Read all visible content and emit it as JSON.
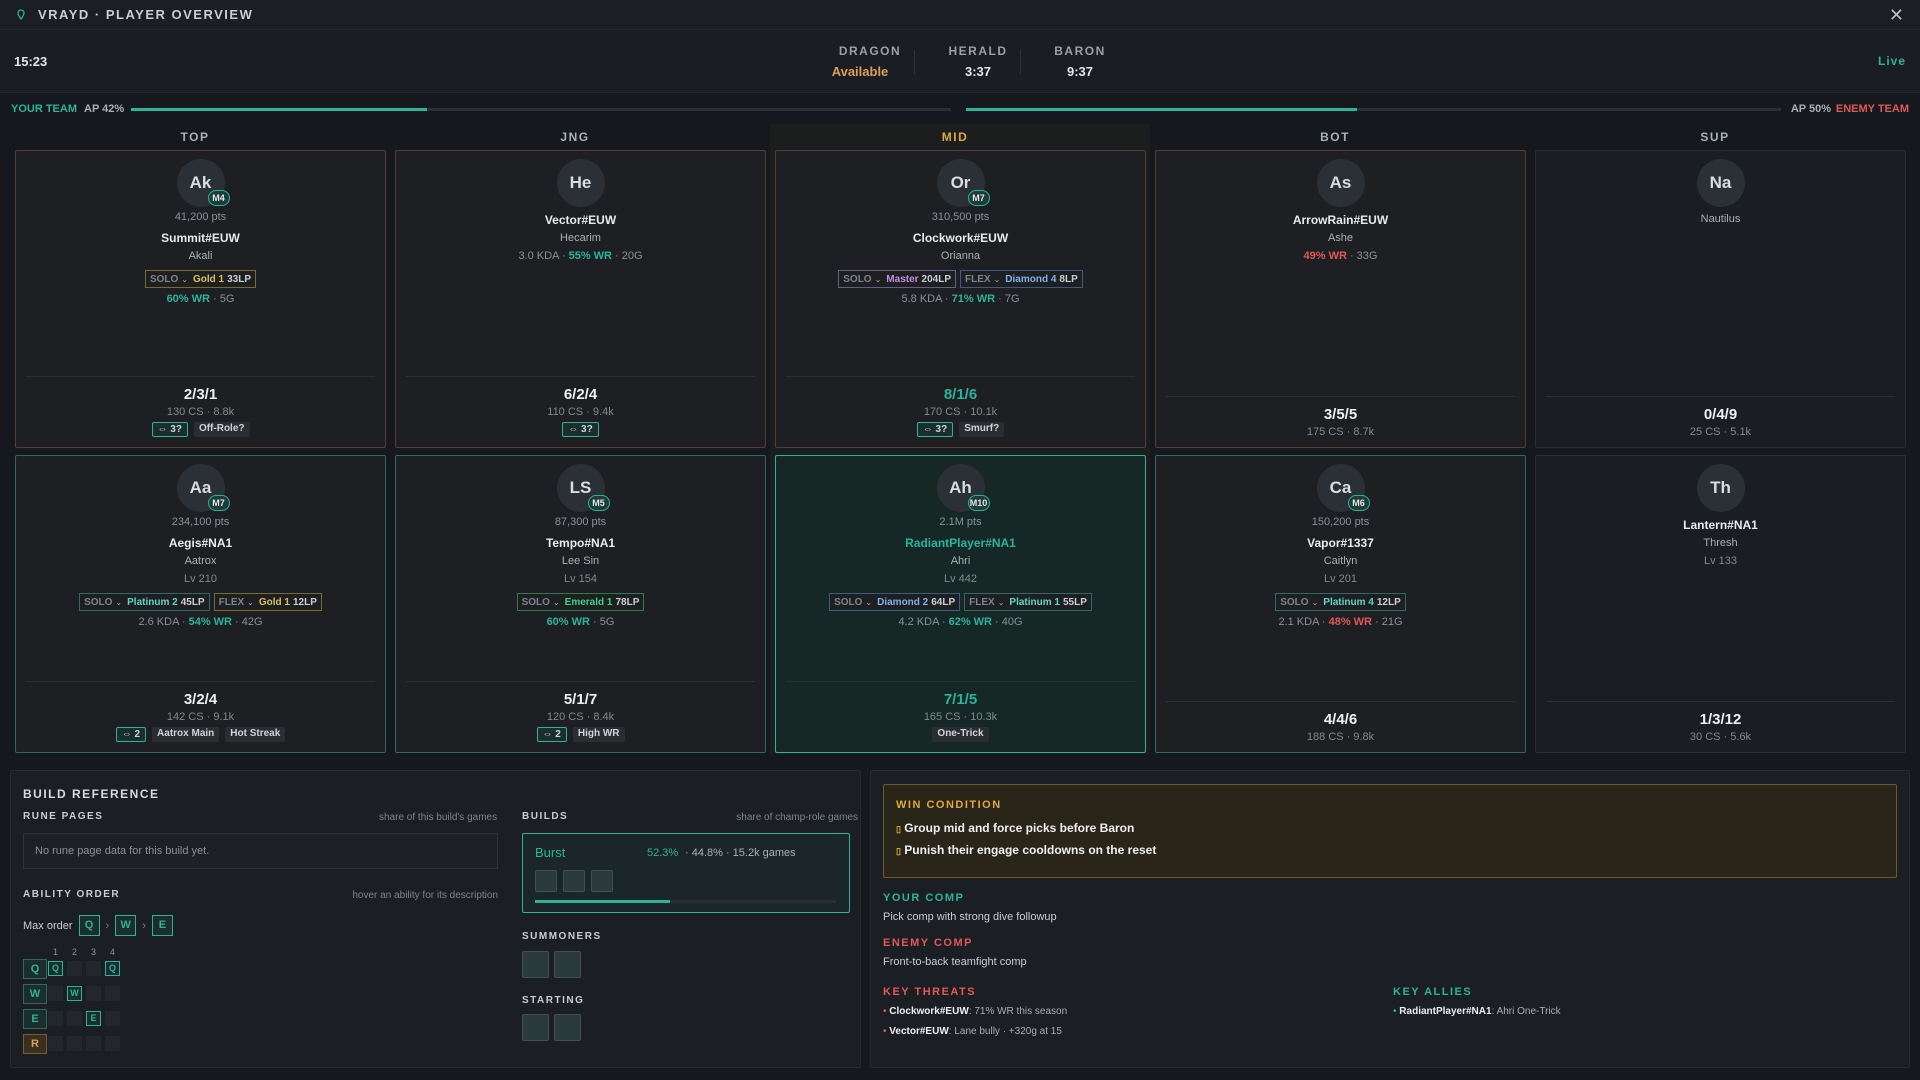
{
  "window": {
    "title": "VRAYD · PLAYER OVERVIEW"
  },
  "timers": {
    "clock": "15:23",
    "dragon": {
      "label": "DRAGON",
      "value": "Available"
    },
    "herald": {
      "label": "HERALD",
      "value": "3:37"
    },
    "baron": {
      "label": "BARON",
      "value": "9:37"
    },
    "live": "Live"
  },
  "ap": {
    "your_team": "YOUR TEAM",
    "your_ap": "AP 42%",
    "your_fill": 0.42,
    "enemy_team": "ENEMY TEAM",
    "enemy_ap": "AP 50%",
    "enemy_fill": 0.5
  },
  "roles": [
    "TOP",
    "JNG",
    "MID",
    "BOT",
    "SUP"
  ],
  "enemy": [
    {
      "init": "Ak",
      "mastery": "M4",
      "pts": "41,200 pts",
      "name": "Summit#EUW",
      "champ": "Akali",
      "ranks": [
        {
          "t": "SOLO",
          "tier": "Gold 1",
          "lp": "33LP"
        }
      ],
      "stat": [
        [
          "60% WR",
          "g"
        ],
        [
          " · 5G",
          ""
        ]
      ],
      "kda": "2/3/1",
      "cs": "130 CS · 8.8k",
      "tags": [
        "⇔ 3?",
        "Off-Role?"
      ]
    },
    {
      "init": "He",
      "name": "Vector#EUW",
      "champ": "Hecarim",
      "stat": [
        [
          "3.0 KDA · ",
          ""
        ],
        [
          "55% WR",
          "g"
        ],
        [
          " · 20G",
          ""
        ]
      ],
      "kda": "6/2/4",
      "cs": "110 CS · 9.4k",
      "tags": [
        "⇔ 3?"
      ]
    },
    {
      "init": "Or",
      "mastery": "M7",
      "pts": "310,500 pts",
      "name": "Clockwork#EUW",
      "champ": "Orianna",
      "ranks": [
        {
          "t": "SOLO",
          "tier": "Master",
          "lp": "204LP"
        },
        {
          "t": "FLEX",
          "tier": "Diamond 4",
          "lp": "8LP"
        }
      ],
      "stat": [
        [
          "5.8 KDA · ",
          ""
        ],
        [
          "71% WR",
          "g"
        ],
        [
          " · 7G",
          ""
        ]
      ],
      "kda": "8/1/6",
      "cs": "170 CS · 10.1k",
      "tags": [
        "⇔ 3?",
        "Smurf?"
      ]
    },
    {
      "init": "As",
      "name": "ArrowRain#EUW",
      "champ": "Ashe",
      "stat": [
        [
          "49% WR",
          "r"
        ],
        [
          " · 33G",
          ""
        ]
      ],
      "kda": "3/5/5",
      "cs": "175 CS · 8.7k"
    },
    {
      "init": "Na",
      "champ": "Nautilus",
      "kda": "0/4/9",
      "cs": "25 CS · 5.1k"
    }
  ],
  "ally": [
    {
      "init": "Aa",
      "mastery": "M7",
      "pts": "234,100 pts",
      "name": "Aegis#NA1",
      "champ": "Aatrox",
      "lv": "Lv 210",
      "ranks": [
        {
          "t": "SOLO",
          "tier": "Platinum 2",
          "lp": "45LP"
        },
        {
          "t": "FLEX",
          "tier": "Gold 1",
          "lp": "12LP"
        }
      ],
      "stat": [
        [
          "2.6 KDA · ",
          ""
        ],
        [
          "54% WR",
          "g"
        ],
        [
          " · 42G",
          ""
        ]
      ],
      "kda": "3/2/4",
      "cs": "142 CS · 9.1k",
      "tags": [
        "⇔ 2",
        "Aatrox Main",
        "Hot Streak"
      ]
    },
    {
      "init": "LS",
      "mastery": "M5",
      "pts": "87,300 pts",
      "name": "Tempo#NA1",
      "champ": "Lee Sin",
      "lv": "Lv 154",
      "ranks": [
        {
          "t": "SOLO",
          "tier": "Emerald 1",
          "lp": "78LP"
        }
      ],
      "stat": [
        [
          "60% WR",
          "g"
        ],
        [
          " · 5G",
          ""
        ]
      ],
      "kda": "5/1/7",
      "cs": "120 CS · 8.4k",
      "tags": [
        "⇔ 2",
        "High WR"
      ]
    },
    {
      "init": "Ah",
      "mastery": "M10",
      "pts": "2.1M pts",
      "name": "RadiantPlayer#NA1",
      "champ": "Ahri",
      "lv": "Lv 442",
      "ranks": [
        {
          "t": "SOLO",
          "tier": "Diamond 2",
          "lp": "64LP"
        },
        {
          "t": "FLEX",
          "tier": "Platinum 1",
          "lp": "55LP"
        }
      ],
      "stat": [
        [
          "4.2 KDA · ",
          ""
        ],
        [
          "62% WR",
          "g"
        ],
        [
          " · 40G",
          ""
        ]
      ],
      "kda": "7/1/5",
      "cs": "165 CS · 10.3k",
      "tags": [
        "One-Trick"
      ]
    },
    {
      "init": "Ca",
      "mastery": "M6",
      "pts": "150,200 pts",
      "name": "Vapor#1337",
      "champ": "Caitlyn",
      "lv": "Lv 201",
      "ranks": [
        {
          "t": "SOLO",
          "tier": "Platinum 4",
          "lp": "12LP"
        }
      ],
      "stat": [
        [
          "2.1 KDA · ",
          ""
        ],
        [
          "48% WR",
          "r"
        ],
        [
          " · 21G",
          ""
        ]
      ],
      "kda": "4/4/6",
      "cs": "188 CS · 9.8k"
    },
    {
      "init": "Th",
      "name": "Lantern#NA1",
      "champ": "Thresh",
      "lv": "Lv 133",
      "kda": "1/3/12",
      "cs": "30 CS · 5.6k"
    }
  ],
  "build": {
    "title": "BUILD REFERENCE",
    "rune_pages": "RUNE PAGES",
    "rune_hint": "share of this build's games",
    "rune_empty": "No rune page data for this build yet.",
    "ability_order": "ABILITY ORDER",
    "ability_hint": "hover an ability for its description",
    "max_order": "Max order",
    "max": [
      "Q",
      "W",
      "E"
    ],
    "levels": [
      "1",
      "2",
      "3",
      "4"
    ],
    "builds": "BUILDS",
    "builds_hint": "share of champ-role games",
    "build_name": "Burst",
    "build_pick": "52.3%",
    "build_rest": " · 44.8% · 15.2k games",
    "build_fill": 0.45,
    "summoners": "SUMMONERS",
    "starting": "STARTING"
  },
  "intel": {
    "win_title": "WIN CONDITION",
    "win": [
      "Group mid and force picks before Baron",
      "Punish their engage cooldowns on the reset"
    ],
    "your_comp": "YOUR COMP",
    "your_comp_text": "Pick comp with strong dive followup",
    "enemy_comp": "ENEMY COMP",
    "enemy_comp_text": "Front-to-back teamfight comp",
    "threats_title": "KEY THREATS",
    "threats": [
      {
        "n": "Clockwork#EUW",
        "t": ": 71% WR this season"
      },
      {
        "n": "Vector#EUW",
        "t": ": Lane bully · +320g at 15"
      }
    ],
    "allies_title": "KEY ALLIES",
    "allies": [
      {
        "n": "RadiantPlayer#NA1",
        "t": ": Ahri One-Trick"
      }
    ]
  },
  "colors": {
    "accent": "#2bb39b",
    "enemy": "#e05858",
    "gold": "#d9a05a"
  }
}
